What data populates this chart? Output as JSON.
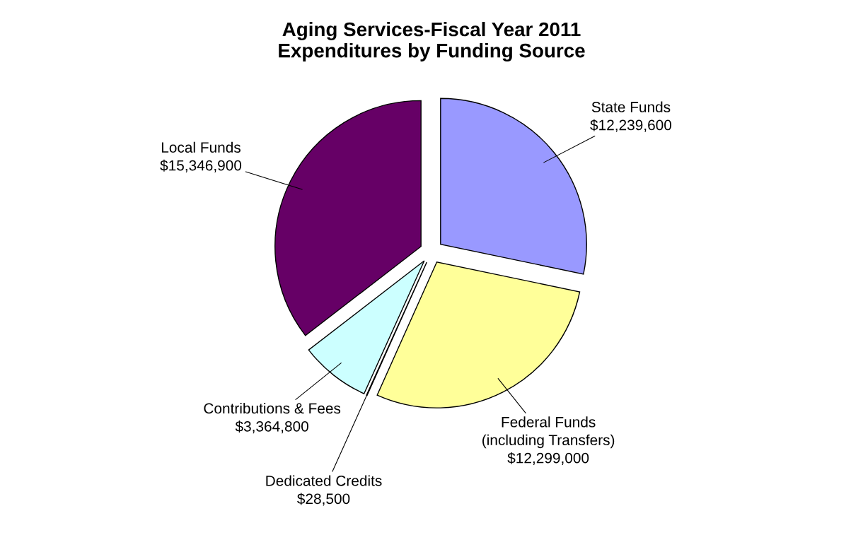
{
  "chart_data": {
    "type": "pie",
    "title": "Aging Services-Fiscal Year 2011\nExpenditures by Funding Source",
    "categories": [
      "State Funds",
      "Federal Funds\n(including Transfers)",
      "Dedicated Credits",
      "Contributions & Fees",
      "Local Funds"
    ],
    "values": [
      12239600,
      12299000,
      28500,
      3364800,
      15346900
    ],
    "value_labels": [
      "$12,239,600",
      "$12,299,000",
      "$28,500",
      "$3,364,800",
      "$15,346,900"
    ],
    "colors": [
      "#9999ff",
      "#ffff99",
      "#ffffff",
      "#ccffff",
      "#660066"
    ],
    "legend": false
  }
}
